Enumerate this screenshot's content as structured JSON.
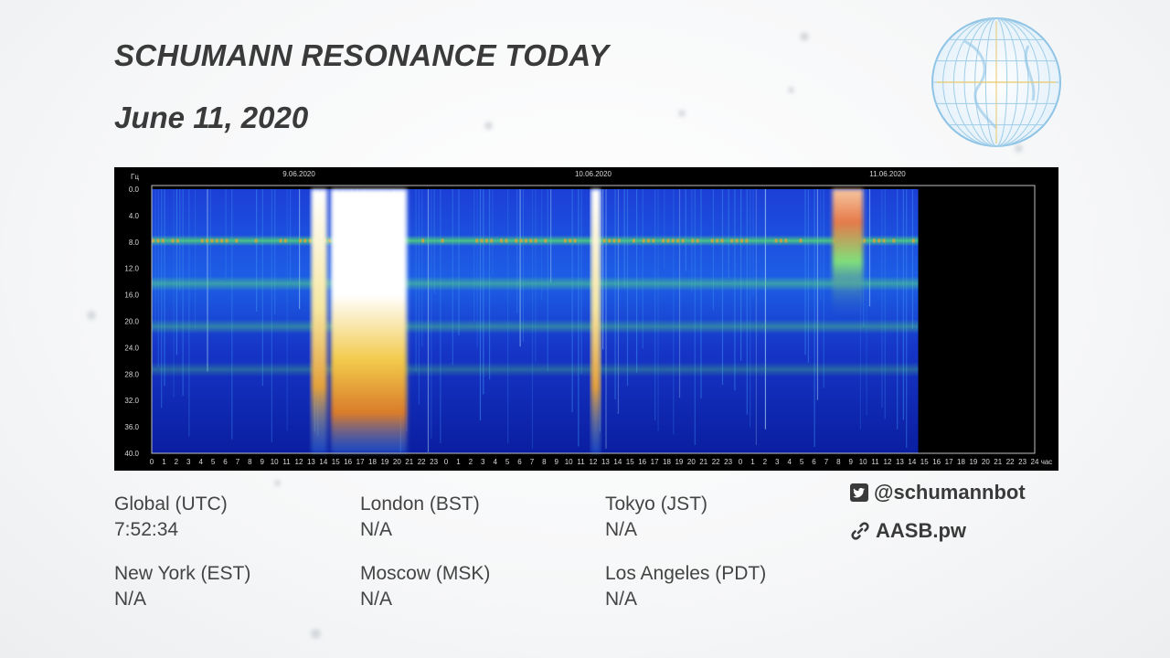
{
  "header": {
    "title": "SCHUMANN RESONANCE TODAY",
    "date": "June 11, 2020"
  },
  "timezones": [
    {
      "label": "Global (UTC)",
      "value": "7:52:34"
    },
    {
      "label": "London (BST)",
      "value": "N/A"
    },
    {
      "label": "Tokyo (JST)",
      "value": "N/A"
    },
    {
      "label": "New York (EST)",
      "value": "N/A"
    },
    {
      "label": "Moscow (MSK)",
      "value": "N/A"
    },
    {
      "label": "Los Angeles (PDT)",
      "value": "N/A"
    }
  ],
  "social": {
    "twitter_handle": "@schumannbot",
    "twitter_icon": "twitter-icon",
    "site": "AASB.pw",
    "site_icon": "link-icon"
  },
  "decor": {
    "globe_icon": "globe-icon",
    "globe_color": "#8fc4e6",
    "globe_accent": "#e8c86a"
  },
  "chart_data": {
    "type": "heatmap",
    "y_unit_label": "Гц",
    "x_unit_label": "час",
    "y_range": [
      0,
      40
    ],
    "y_ticks": [
      "0.0",
      "4.0",
      "8.0",
      "12.0",
      "16.0",
      "20.0",
      "24.0",
      "28.0",
      "32.0",
      "36.0",
      "40.0"
    ],
    "x_hours_per_day": 24,
    "days": [
      "9.06.2020",
      "10.06.2020",
      "11.06.2020"
    ],
    "data_end_hour_day3": 14.5,
    "resonance_bands_hz": [
      7.8,
      14.3,
      20.8,
      27.3
    ],
    "colors": {
      "low": "#0a1ea0",
      "mid": "#1fd6c8",
      "high": "#e6d22a",
      "peak": "#ffffff",
      "band": "#58e86a"
    },
    "bursts": [
      {
        "day": 0,
        "start_hour": 13.0,
        "end_hour": 14.3,
        "intensity": "high"
      },
      {
        "day": 0,
        "start_hour": 14.6,
        "end_hour": 20.8,
        "intensity": "peak"
      },
      {
        "day": 1,
        "start_hour": 11.8,
        "end_hour": 12.6,
        "intensity": "high"
      },
      {
        "day": 2,
        "start_hour": 7.5,
        "end_hour": 10.0,
        "intensity": "mid"
      }
    ]
  }
}
